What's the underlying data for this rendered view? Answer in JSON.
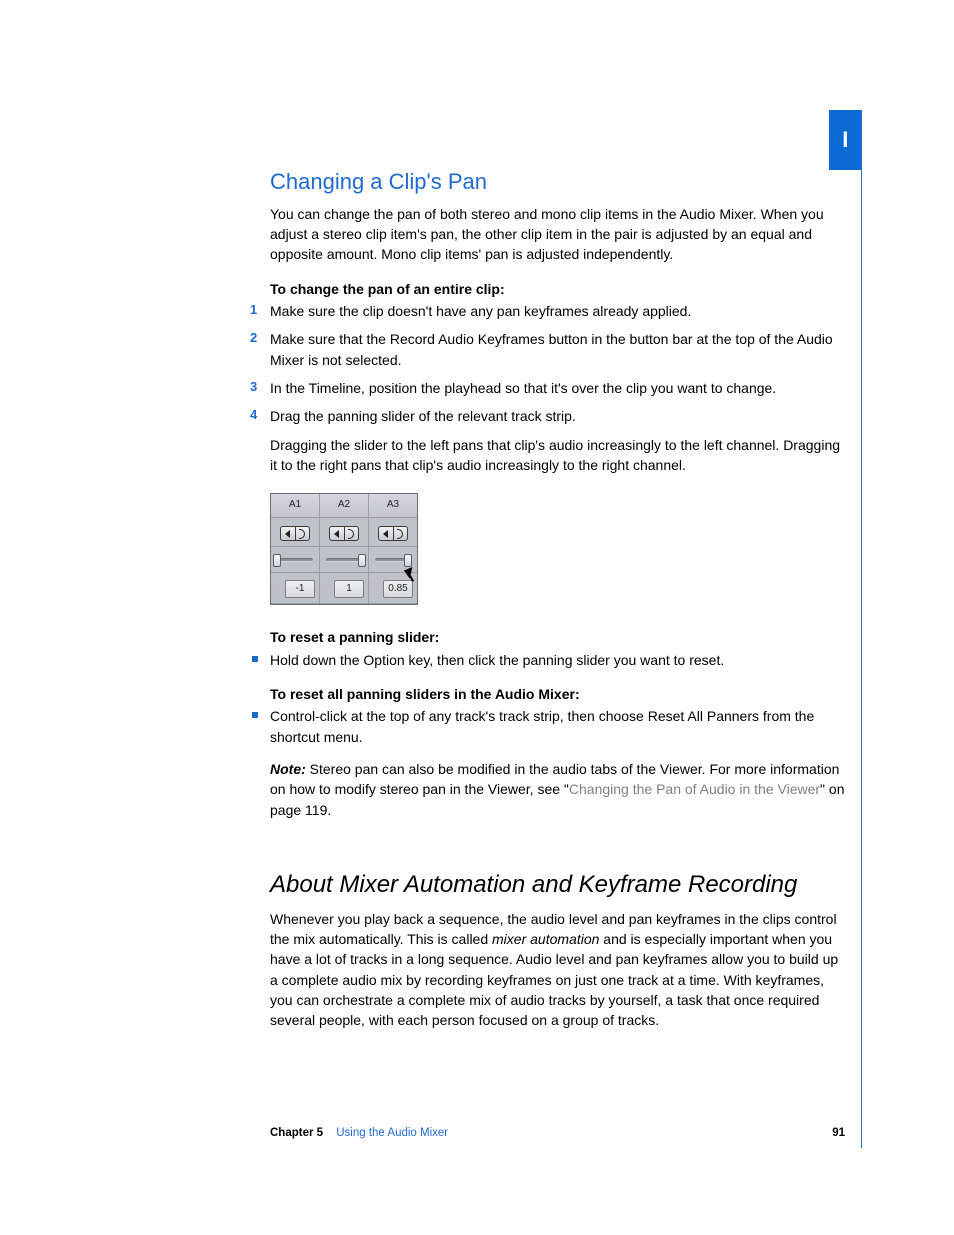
{
  "tab": {
    "label": "I",
    "bg": "#0a6ad6",
    "fg": "#ffffff"
  },
  "rule_color": "#2b72c9",
  "accent": "#1f6ad0",
  "sec1": {
    "heading": "Changing a Clip's Pan",
    "intro": "You can change the pan of both stereo and mono clip items in the Audio Mixer. When you adjust a stereo clip item's pan, the other clip item in the pair is adjusted by an equal and opposite amount. Mono clip items' pan is adjusted independently.",
    "task1_title": "To change the pan of an entire clip:",
    "steps": [
      "Make sure the clip doesn't have any pan keyframes already applied.",
      "Make sure that the Record Audio Keyframes button in the button bar at the top of the Audio Mixer is not selected.",
      "In the Timeline, position the playhead so that it's over the clip you want to change.",
      "Drag the panning slider of the relevant track strip."
    ],
    "after_steps": "Dragging the slider to the left pans that clip's audio increasingly to the left channel. Dragging it to the right pans that clip's audio increasingly to the right channel.",
    "task2_title": "To reset a panning slider:",
    "task2_item": "Hold down the Option key, then click the panning slider you want to reset.",
    "task3_title": "To reset all panning sliders in the Audio Mixer:",
    "task3_item": "Control-click at the top of any track's track strip, then choose Reset All Panners from the shortcut menu.",
    "note_label": "Note:",
    "note_pre": "  Stereo pan can also be modified in the audio tabs of the Viewer. For more information on how to modify stereo pan in the Viewer, see \"",
    "note_link": "Changing the Pan of Audio in the Viewer",
    "note_post": "\" on page 119."
  },
  "mixer": {
    "tracks": [
      "A1",
      "A2",
      "A3"
    ],
    "pan_positions": [
      0,
      100,
      92
    ],
    "values": [
      "-1",
      "1",
      "0.85"
    ],
    "cursor_track": 2
  },
  "sec2": {
    "heading": "About Mixer Automation and Keyframe Recording",
    "body_pre": "Whenever you play back a sequence, the audio level and pan keyframes in the clips control the mix automatically. This is called ",
    "body_em": "mixer automation",
    "body_post": " and is especially important when you have a lot of tracks in a long sequence. Audio level and pan keyframes allow you to build up a complete audio mix by recording keyframes on just one track at a time. With keyframes, you can orchestrate a complete mix of audio tracks by yourself, a task that once required several people, with each person focused on a group of tracks."
  },
  "footer": {
    "chapter_label": "Chapter 5",
    "chapter_title": "Using the Audio Mixer",
    "page": "91"
  }
}
